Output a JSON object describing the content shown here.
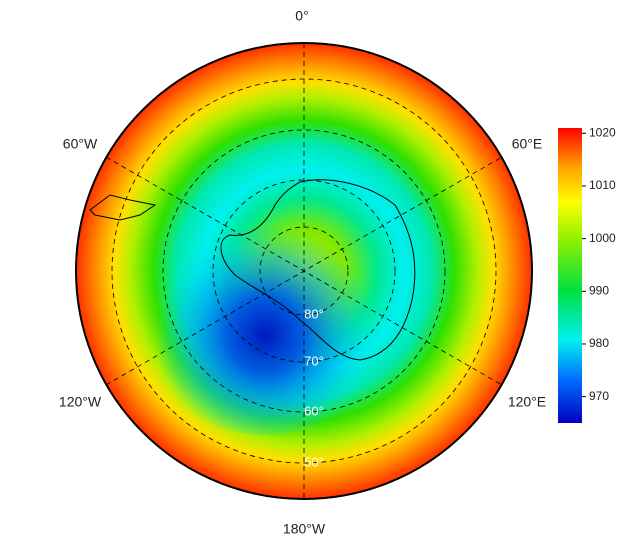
{
  "map": {
    "longitude_labels": [
      "0°",
      "60°E",
      "120°E",
      "180°W",
      "120°W",
      "60°W"
    ],
    "latitude_labels": [
      "80°",
      "70°",
      "60°",
      "50°"
    ],
    "colorbar": {
      "lim": [
        965,
        1021
      ],
      "ticks": [
        970,
        980,
        990,
        1000,
        1010,
        1020
      ]
    }
  }
}
